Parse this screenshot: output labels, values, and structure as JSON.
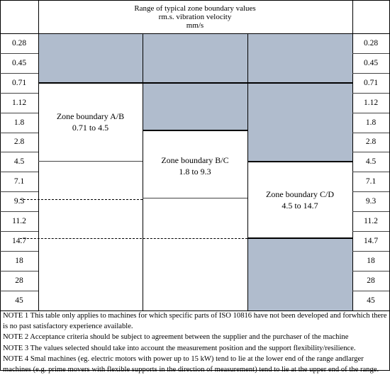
{
  "header": {
    "line1": "Range of typical zone boundary values",
    "line2": "rm.s. vibration velocity",
    "line3": "mm/s"
  },
  "values_left": [
    "0.28",
    "0.45",
    "0.71",
    "1.12",
    "1.8",
    "2.8",
    "4.5",
    "7.1",
    "9.3",
    "11.2",
    "14.7",
    "18",
    "28",
    "45"
  ],
  "values_right": [
    "0.28",
    "0.45",
    "0.71",
    "1.12",
    "1.8",
    "2.8",
    "4.5",
    "7.1",
    "9.3",
    "11.2",
    "14.7",
    "18",
    "28",
    "45"
  ],
  "zones": {
    "ab": {
      "title": "Zone boundary A/B",
      "range": "0.71 to 4.5"
    },
    "bc": {
      "title": "Zone boundary B/C",
      "range": "1.8 to 9.3"
    },
    "cd": {
      "title": "Zone boundary C/D",
      "range": "4.5 to 14.7"
    }
  },
  "shade_color": "#b0bccd",
  "notes": [
    "NOTE 1 This table only applies to machines for which specific parts of ISO 10816 have not been developed and forwhich there",
    "is no past satisfactory experience available.",
    "NOTE 2 Acceptance criteria should be subject to agreement between the supplier and the purchaser of the machine",
    "NOTE 3 The values selected should take into account the measurement position and the support flexibility/resilience.",
    "NOTE 4 Smal machines (eg. electric motors with power up to 15 kW) tend to lie at the lower end of the range andlarger",
    "machines (e.g. prime movers with flexible supports in the direction of measurement) tend to lie at the upper end of the range."
  ]
}
